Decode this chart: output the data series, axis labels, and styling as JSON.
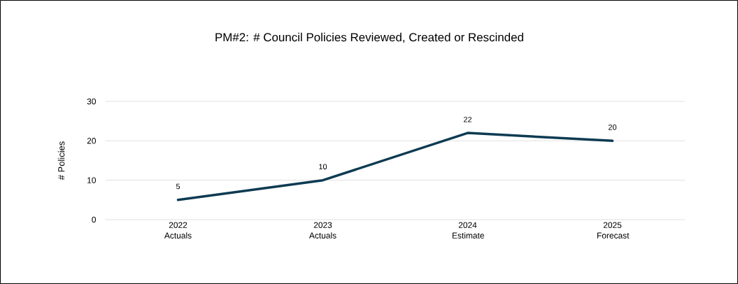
{
  "chart_data": {
    "type": "line",
    "title": "PM#2: # Council Policies Reviewed, Created or Rescinded",
    "ylabel": "# Policies",
    "categories": [
      "2022 Actuals",
      "2023 Actuals",
      "2024 Estimate",
      "2025 Forecast"
    ],
    "values": [
      5,
      10,
      22,
      20
    ],
    "color": "#0d3b52",
    "ylim": [
      0,
      30
    ],
    "yticks": [
      0,
      10,
      20,
      30
    ],
    "grid": "y",
    "data_labels": true,
    "marker": "none",
    "line_style": "solid"
  }
}
